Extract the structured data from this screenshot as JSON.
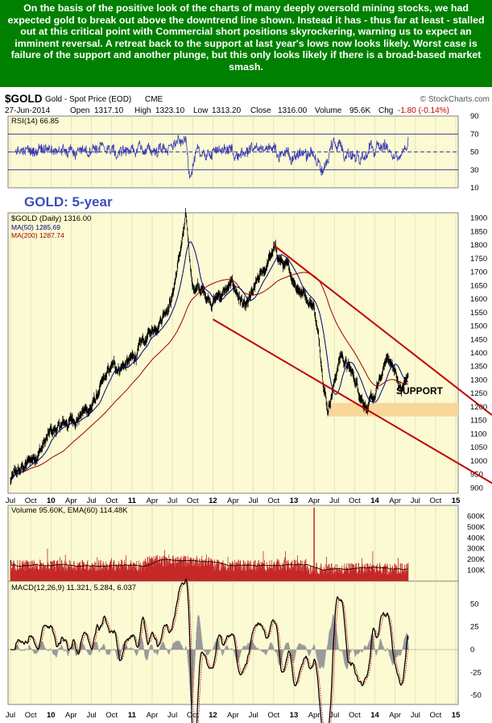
{
  "commentary": "On the basis of the positive look of the charts of many deeply oversold mining stocks, we had expected gold to break out above the downtrend line shown. Instead it has - thus far at least - stalled out at this critical point with Commercial short positions skyrockering, warning us to expect an imminent reversal. A retreat back to the support at last year's lows now looks likely. Worst case is failure of the support and another plunge, but this only looks likely if there is a broad-based market smash.",
  "header": {
    "symbol": "$GOLD",
    "description": "Gold - Spot Price (EOD)",
    "exchange": "CME",
    "source": "© StockCharts.com",
    "date": "27-Jun-2014",
    "open_label": "Open",
    "open": "1317.10",
    "high_label": "High",
    "high": "1323.10",
    "low_label": "Low",
    "low": "1313.20",
    "close_label": "Close",
    "close": "1316.00",
    "volume_label": "Volume",
    "volume": "95.6K",
    "chg_label": "Chg",
    "chg": "-1.80 (-0.14%)"
  },
  "panels": {
    "rsi_label": "RSI(14) 66.85",
    "price_label": "$GOLD (Daily) 1316.00",
    "ma50_label": "MA(50) 1285.69",
    "ma200_label": "MA(200) 1287.74",
    "volume_label": "Volume 95.60K, EMA(60) 114.48K",
    "macd_label": "MACD(12,26,9) 11.321, 5.284, 6.037"
  },
  "annotations": {
    "title": "GOLD: 5-year",
    "support": "SUPPORT"
  },
  "colors": {
    "banner_bg": "#008000",
    "banner_text": "#ffffff",
    "panel_bg": "#fbfad2",
    "trendline": "#c00000",
    "support_band": "#f9d79a",
    "ma50": "#000080",
    "ma200": "#a00000",
    "volume_bars": "#c62828",
    "rsi_line": "#3b3bb3",
    "title_text": "#3b50b8",
    "chg_text": "#c00000"
  },
  "chart_data": [
    {
      "type": "line",
      "panel": "rsi",
      "series": [
        {
          "name": "RSI(14)",
          "last": 66.85
        }
      ],
      "yticks": [
        10,
        30,
        50,
        70,
        90
      ],
      "ylim": [
        10,
        90
      ],
      "reference_lines": [
        30,
        50,
        70
      ]
    },
    {
      "type": "line",
      "panel": "price",
      "x": [
        "Jul 2009",
        "Oct 2009",
        "Jan 2010",
        "Apr 2010",
        "Jul 2010",
        "Oct 2010",
        "Jan 2011",
        "Apr 2011",
        "Jul 2011",
        "Sep 2011",
        "Oct 2011",
        "Jan 2012",
        "Apr 2012",
        "Jun 2012",
        "Oct 2012",
        "Jan 2013",
        "Apr 2013",
        "Jun 2013",
        "Aug 2013",
        "Oct 2013",
        "Dec 2013",
        "Jan 2014",
        "Mar 2014",
        "May 2014",
        "Jun 2014"
      ],
      "series": [
        {
          "name": "$GOLD (Daily)",
          "values": [
            925,
            1000,
            1100,
            1150,
            1200,
            1340,
            1370,
            1480,
            1620,
            1890,
            1650,
            1600,
            1650,
            1560,
            1780,
            1670,
            1580,
            1200,
            1400,
            1300,
            1200,
            1230,
            1390,
            1260,
            1316
          ]
        },
        {
          "name": "MA(50)",
          "values": [
            935,
            990,
            1110,
            1125,
            1210,
            1290,
            1360,
            1440,
            1560,
            1780,
            1700,
            1690,
            1650,
            1590,
            1720,
            1690,
            1600,
            1340,
            1330,
            1330,
            1260,
            1240,
            1320,
            1290,
            1285.69
          ]
        },
        {
          "name": "MA(200)",
          "values": [
            900,
            930,
            1000,
            1080,
            1150,
            1220,
            1300,
            1380,
            1470,
            1570,
            1610,
            1640,
            1660,
            1640,
            1640,
            1650,
            1650,
            1550,
            1460,
            1400,
            1360,
            1330,
            1300,
            1290,
            1287.74
          ]
        }
      ],
      "last": 1316.0,
      "yticks": [
        900,
        950,
        1000,
        1050,
        1100,
        1150,
        1200,
        1250,
        1300,
        1350,
        1400,
        1450,
        1500,
        1550,
        1600,
        1650,
        1700,
        1750,
        1800,
        1850,
        1900
      ],
      "ylim": [
        880,
        1920
      ],
      "trendlines": [
        {
          "name": "downtrend upper",
          "from": {
            "x": "Oct 2012",
            "y": 1800
          },
          "to": {
            "x": "Dec 2015",
            "y": 1060
          }
        },
        {
          "name": "channel lower",
          "from": {
            "x": "Jan 2012",
            "y": 1525
          },
          "to": {
            "x": "Jan 2016",
            "y": 820
          }
        }
      ],
      "support_band": {
        "from": "Jun 2013",
        "y": [
          1165,
          1215
        ]
      }
    },
    {
      "type": "bar",
      "panel": "volume",
      "series": [
        {
          "name": "Volume",
          "last": "95.60K"
        },
        {
          "name": "EMA(60)",
          "last": "114.48K"
        }
      ],
      "yticks": [
        "100K",
        "200K",
        "300K",
        "400K",
        "500K",
        "600K"
      ],
      "ylim": [
        0,
        700000
      ],
      "notable": [
        {
          "x": "Apr 2013",
          "value": 680000
        }
      ]
    },
    {
      "type": "line",
      "panel": "macd",
      "series": [
        {
          "name": "MACD",
          "last": 11.321
        },
        {
          "name": "Signal",
          "last": 5.284
        },
        {
          "name": "Histogram",
          "last": 6.037
        }
      ],
      "yticks": [
        -50,
        -25,
        0,
        25,
        50
      ],
      "ylim": [
        -60,
        75
      ]
    }
  ],
  "x_axis": [
    "Jul",
    "Oct",
    "10",
    "Apr",
    "Jul",
    "Oct",
    "11",
    "Apr",
    "Jul",
    "Oct",
    "12",
    "Apr",
    "Jul",
    "Oct",
    "13",
    "Apr",
    "Jul",
    "Oct",
    "14",
    "Apr",
    "Jul",
    "Oct",
    "15"
  ]
}
